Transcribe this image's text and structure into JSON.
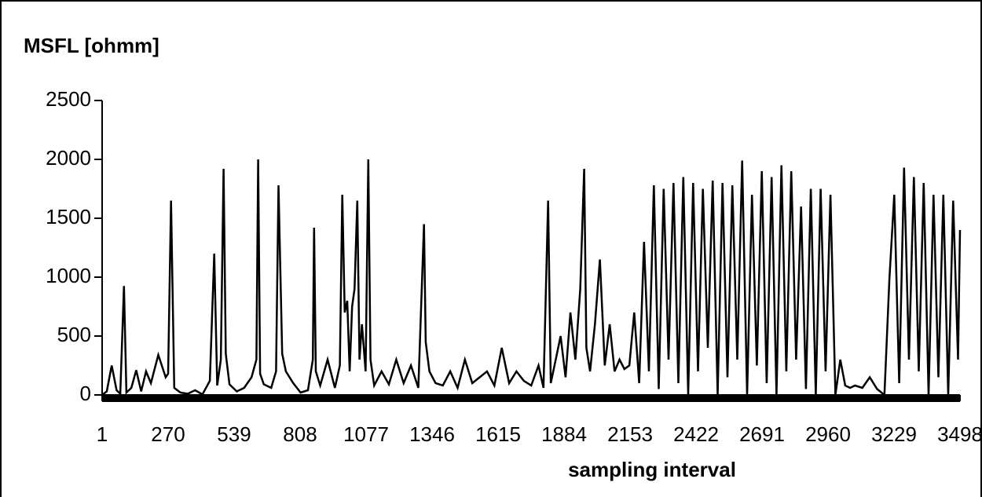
{
  "chart_data": {
    "type": "line",
    "ylabel": "MSFL [ohmm]",
    "xlabel": "sampling interval",
    "color": "#000000",
    "xlim": [
      1,
      3498
    ],
    "xticks": [
      1,
      270,
      539,
      808,
      1077,
      1346,
      1615,
      1884,
      2153,
      2422,
      2691,
      2960,
      3229,
      3498
    ],
    "ylim": [
      0,
      2500
    ],
    "yticks": [
      0,
      500,
      1000,
      1500,
      2000,
      2500
    ],
    "grid": false,
    "x": [
      1,
      20,
      40,
      60,
      75,
      90,
      100,
      120,
      140,
      160,
      180,
      200,
      230,
      260,
      270,
      282,
      295,
      320,
      350,
      380,
      410,
      440,
      458,
      470,
      485,
      496,
      505,
      520,
      550,
      580,
      610,
      630,
      637,
      645,
      660,
      690,
      710,
      720,
      727,
      735,
      750,
      780,
      810,
      840,
      860,
      865,
      872,
      890,
      920,
      950,
      970,
      980,
      990,
      1000,
      1010,
      1020,
      1030,
      1041,
      1050,
      1060,
      1075,
      1086,
      1095,
      1110,
      1140,
      1170,
      1200,
      1230,
      1260,
      1290,
      1313,
      1320,
      1335,
      1360,
      1390,
      1420,
      1450,
      1480,
      1510,
      1540,
      1570,
      1600,
      1630,
      1660,
      1690,
      1720,
      1750,
      1780,
      1800,
      1819,
      1830,
      1850,
      1870,
      1890,
      1910,
      1930,
      1950,
      1966,
      1975,
      1990,
      2010,
      2030,
      2050,
      2070,
      2090,
      2110,
      2130,
      2150,
      2170,
      2190,
      2210,
      2230,
      2250,
      2270,
      2290,
      2310,
      2330,
      2350,
      2370,
      2390,
      2410,
      2430,
      2450,
      2470,
      2490,
      2510,
      2530,
      2550,
      2570,
      2590,
      2610,
      2630,
      2650,
      2670,
      2690,
      2710,
      2730,
      2750,
      2770,
      2790,
      2810,
      2830,
      2850,
      2870,
      2890,
      2910,
      2930,
      2950,
      2970,
      2990,
      3010,
      3030,
      3050,
      3070,
      3100,
      3130,
      3160,
      3190,
      3210,
      3230,
      3250,
      3270,
      3290,
      3310,
      3330,
      3350,
      3370,
      3390,
      3410,
      3430,
      3450,
      3470,
      3490,
      3498
    ],
    "values": [
      0,
      30,
      250,
      40,
      10,
      925,
      20,
      60,
      210,
      30,
      200,
      100,
      340,
      150,
      180,
      1650,
      60,
      20,
      10,
      40,
      5,
      120,
      1200,
      80,
      300,
      1920,
      350,
      90,
      30,
      60,
      150,
      300,
      2000,
      180,
      90,
      60,
      200,
      1780,
      1100,
      350,
      200,
      100,
      20,
      40,
      300,
      1420,
      200,
      80,
      300,
      60,
      250,
      1700,
      700,
      800,
      200,
      750,
      900,
      1650,
      300,
      600,
      200,
      2000,
      300,
      80,
      200,
      90,
      300,
      100,
      250,
      60,
      1450,
      450,
      200,
      100,
      80,
      200,
      60,
      300,
      100,
      150,
      200,
      80,
      400,
      100,
      200,
      120,
      80,
      250,
      60,
      1650,
      100,
      300,
      500,
      150,
      700,
      300,
      900,
      1920,
      400,
      200,
      600,
      1150,
      250,
      600,
      200,
      300,
      220,
      250,
      700,
      100,
      1300,
      200,
      1780,
      50,
      1750,
      300,
      1800,
      100,
      1850,
      0,
      1800,
      200,
      1750,
      400,
      1820,
      0,
      1800,
      150,
      1780,
      300,
      1990,
      0,
      1700,
      250,
      1900,
      100,
      1850,
      0,
      1950,
      200,
      1900,
      300,
      1600,
      50,
      1750,
      0,
      1750,
      200,
      1700,
      0,
      300,
      80,
      60,
      80,
      60,
      150,
      50,
      0,
      980,
      1700,
      100,
      1930,
      300,
      1850,
      200,
      1800,
      0,
      1700,
      150,
      1700,
      0,
      1650,
      300,
      1400
    ]
  }
}
